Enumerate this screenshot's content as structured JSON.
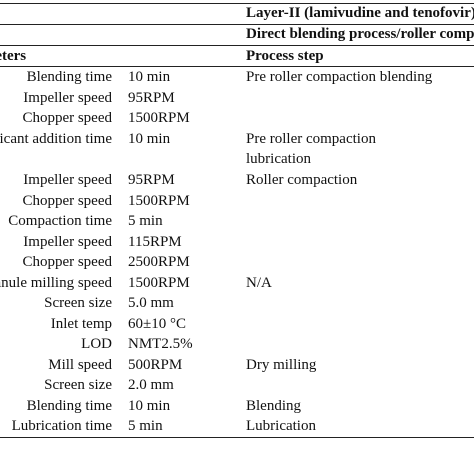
{
  "header": {
    "layer_title": "Layer-II (lamivudine and tenofovir)",
    "process_title": "Direct blending process/roller compaction",
    "col_parameters": "Parameters",
    "col_process_step": "Process step"
  },
  "rows": [
    {
      "param": "Blending time",
      "value": "10 min",
      "step": "Pre roller compaction blending"
    },
    {
      "param": "Impeller speed",
      "value": "95RPM",
      "step": ""
    },
    {
      "param": "Chopper speed",
      "value": "1500RPM",
      "step": ""
    },
    {
      "param": "Lubricant addition time",
      "value": "10 min",
      "step": "Pre roller compaction"
    },
    {
      "param": "",
      "value": "",
      "step": "lubrication"
    },
    {
      "param": "Impeller speed",
      "value": "95RPM",
      "step": "Roller compaction"
    },
    {
      "param": "Chopper speed",
      "value": "1500RPM",
      "step": ""
    },
    {
      "param": "Compaction time",
      "value": "5 min",
      "step": ""
    },
    {
      "param": "Impeller speed",
      "value": "115RPM",
      "step": ""
    },
    {
      "param": "Chopper speed",
      "value": "2500RPM",
      "step": ""
    },
    {
      "param": "Granule milling speed",
      "value": "1500RPM",
      "step": "N/A"
    },
    {
      "param": "Screen size",
      "value": "5.0 mm",
      "step": ""
    },
    {
      "param": "Inlet temp",
      "value": "60±10 °C",
      "step": ""
    },
    {
      "param": "LOD",
      "value": "NMT2.5%",
      "step": ""
    },
    {
      "param": "Mill speed",
      "value": "500RPM",
      "step": "Dry milling"
    },
    {
      "param": "Screen size",
      "value": "2.0 mm",
      "step": ""
    },
    {
      "param": "Blending time",
      "value": "10 min",
      "step": "Blending"
    },
    {
      "param": "Lubrication time",
      "value": "5 min",
      "step": "Lubrication"
    }
  ]
}
